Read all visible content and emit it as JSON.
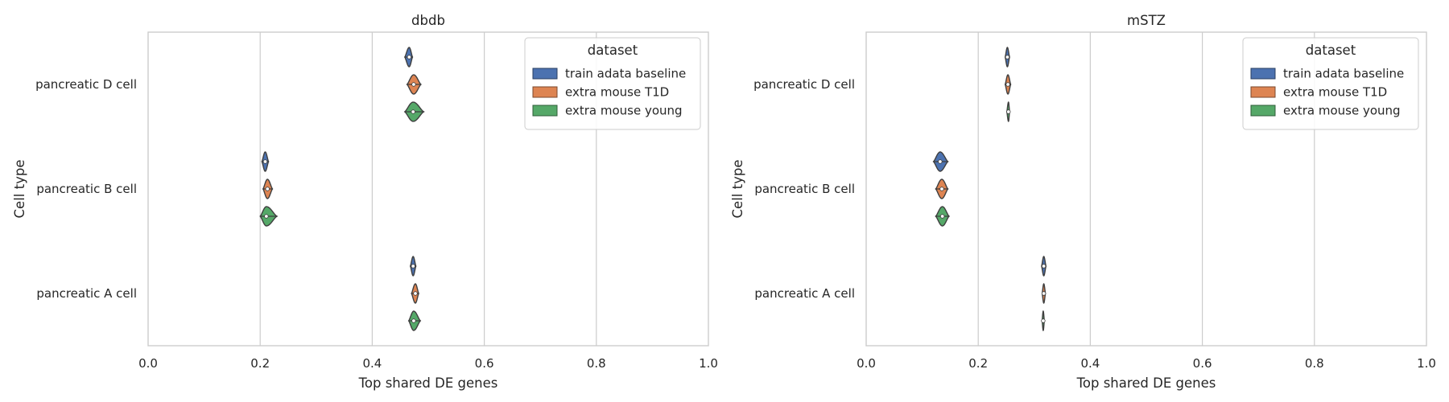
{
  "chart_data": [
    {
      "type": "violin",
      "orientation": "horizontal",
      "title": "dbdb",
      "xlabel": "Top shared DE genes",
      "ylabel": "Cell type",
      "xlim": [
        0.0,
        1.0
      ],
      "xticks": [
        "0.0",
        "0.2",
        "0.4",
        "0.6",
        "0.8",
        "1.0"
      ],
      "grid": "vertical",
      "legend": {
        "title": "dataset",
        "position": "top-right"
      },
      "categories": [
        "pancreatic D cell",
        "pancreatic B cell",
        "pancreatic A cell"
      ],
      "series": [
        {
          "name": "train adata baseline",
          "color": "#4c72b0",
          "values": [
            {
              "median": 0.466,
              "min": 0.458,
              "max": 0.472
            },
            {
              "median": 0.209,
              "min": 0.203,
              "max": 0.215
            },
            {
              "median": 0.473,
              "min": 0.468,
              "max": 0.478
            }
          ]
        },
        {
          "name": "extra mouse T1D",
          "color": "#dd8452",
          "values": [
            {
              "median": 0.474,
              "min": 0.462,
              "max": 0.487
            },
            {
              "median": 0.213,
              "min": 0.205,
              "max": 0.222
            },
            {
              "median": 0.477,
              "min": 0.47,
              "max": 0.483
            }
          ]
        },
        {
          "name": "extra mouse young",
          "color": "#55a868",
          "values": [
            {
              "median": 0.473,
              "min": 0.458,
              "max": 0.492
            },
            {
              "median": 0.211,
              "min": 0.2,
              "max": 0.23
            },
            {
              "median": 0.474,
              "min": 0.465,
              "max": 0.486
            }
          ]
        }
      ]
    },
    {
      "type": "violin",
      "orientation": "horizontal",
      "title": "mSTZ",
      "xlabel": "Top shared DE genes",
      "ylabel": "Cell type",
      "xlim": [
        0.0,
        1.0
      ],
      "xticks": [
        "0.0",
        "0.2",
        "0.4",
        "0.6",
        "0.8",
        "1.0"
      ],
      "grid": "vertical",
      "legend": {
        "title": "dataset",
        "position": "top-right"
      },
      "categories": [
        "pancreatic D cell",
        "pancreatic B cell",
        "pancreatic A cell"
      ],
      "series": [
        {
          "name": "train adata baseline",
          "color": "#4c72b0",
          "values": [
            {
              "median": 0.252,
              "min": 0.248,
              "max": 0.256
            },
            {
              "median": 0.132,
              "min": 0.12,
              "max": 0.146
            },
            {
              "median": 0.317,
              "min": 0.313,
              "max": 0.321
            }
          ]
        },
        {
          "name": "extra mouse T1D",
          "color": "#dd8452",
          "values": [
            {
              "median": 0.253,
              "min": 0.248,
              "max": 0.258
            },
            {
              "median": 0.135,
              "min": 0.124,
              "max": 0.146
            },
            {
              "median": 0.317,
              "min": 0.314,
              "max": 0.32
            }
          ]
        },
        {
          "name": "extra mouse young",
          "color": "#55a868",
          "values": [
            {
              "median": 0.254,
              "min": 0.251,
              "max": 0.256
            },
            {
              "median": 0.136,
              "min": 0.124,
              "max": 0.148
            },
            {
              "median": 0.316,
              "min": 0.314,
              "max": 0.318
            }
          ]
        }
      ]
    }
  ]
}
